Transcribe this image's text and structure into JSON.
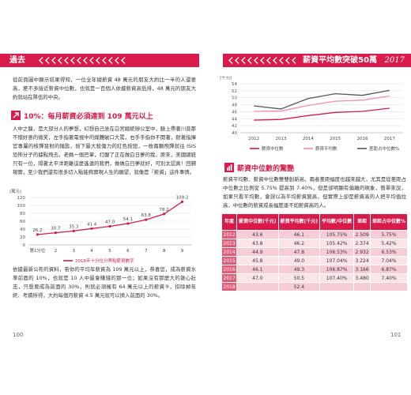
{
  "left_page": {
    "header": "過去",
    "paragraph_1": "從前頁圖中顯示結果得知，一位全年總薪資 48 萬元的朋友大約比一半的人還要高，差不多接近薪資中位數，也就是一百個人依據薪資高低排，48 萬元的朋友大約就站在隊伍的中央。",
    "heading": "10%：每月薪資必須達到 109 萬元以上",
    "paragraph_2": "人中之龍，是大部分人的夢想，幻想自己坐在白宮總統辦公室中，臉上帶著川普那不懷好意的微笑，左手指著電視中的媒體破口大罵，右手手指你不開著，耐著指揮官專屬的核彈發射的鑰匙，按下最大殺傷力的紅色按鈕，一枚兩顆飛彈就往 ISIS 恐怖分子的據點飛去。老媽一個巴掌，打醒了正在做白日夢的我，原來，美國總統只有一位，隔著太平洋距離這麼遙遠的我們，做做白日夢就好，可別太認真！回歸現實，至少我們還有很多切入點能夠實現人生的願望，就像是「薪資」這件事情。",
    "paragraph_3": "依據最新公布的資料，若你的平均年薪資為 109 萬元以上，恭喜您，成為薪資水準前面的 10%，也就是 10 人中最會賺錢的那一位；如果沒有那麼大的雄心壯志，只想要成為前面的 30%，則就必須擁有 64 萬元以上的薪資③，扣除掉年終、考績所得，大約每個月薪資 4.5 萬元就可以擠入前面的 30%。",
    "page_number": "100"
  },
  "right_page": {
    "header": "薪資平均數突破50萬",
    "header_year": "2017",
    "heading": "薪資中位數的驚艷",
    "paragraph": "薪資平均數、薪資中位數雙雙創新高，兩者差距幅度也越來越大，尤其是從差距占中位數之比例從 5.75% 提高到 7.40%，但是卻明顯有偏離的現象，簡單來說，如果只看平均數，會誤以為平均薪資變高，但實際上卻是薪資高的人把平均值拉高，中位數的薪資成長幅度遠不如薪資高的人。",
    "table": {
      "header": [
        "年度",
        "薪資中位數(千元)",
        "薪資平均數(千元)",
        "平均數/中位數",
        "差距",
        "差距占中位數%"
      ],
      "rows": [
        [
          "2012",
          "43.6",
          "46.1",
          "105.75%",
          "2.509",
          "5.75%"
        ],
        [
          "2013",
          "43.8",
          "46.2",
          "105.42%",
          "2.374",
          "5.42%"
        ],
        [
          "2014",
          "44.9",
          "47.8",
          "106.53%",
          "2.932",
          "6.53%"
        ],
        [
          "2015",
          "45.8",
          "49.0",
          "107.04%",
          "3.224",
          "7.04%"
        ],
        [
          "2016",
          "46.1",
          "49.3",
          "106.87%",
          "3.166",
          "6.87%"
        ],
        [
          "2017",
          "47.0",
          "50.5",
          "107.40%",
          "3.480",
          "7.40%"
        ],
        [
          "2018",
          null,
          "52.4",
          null,
          null,
          null
        ]
      ]
    },
    "page_number": "101"
  },
  "chart_data": [
    {
      "type": "line",
      "y_label": "(萬元)",
      "categories": [
        "第1分位",
        "2",
        "3",
        "4",
        "5",
        "6",
        "7",
        "8",
        "9"
      ],
      "series": [
        {
          "name": "2016年十分位分界點薪資數字",
          "color": "#d81b4a",
          "values": [
            26.2,
            30.7,
            35.3,
            41.4,
            47.0,
            54.1,
            63.8,
            78.2,
            109.2
          ],
          "value_labels": [
            "26.2",
            "30.7",
            "35.3",
            "41.4",
            "47.0",
            "54.1",
            "63.8",
            "78.2",
            "109.2"
          ]
        }
      ],
      "ylim": [
        0,
        120
      ],
      "yticks": [
        0,
        20,
        40,
        60,
        80,
        100,
        120
      ],
      "grid": true
    },
    {
      "type": "line",
      "y_label": "(千元)",
      "categories": [
        "2012",
        "2013",
        "2014",
        "2015",
        "2016",
        "2017"
      ],
      "series": [
        {
          "name": "薪資中位數",
          "color": "#d81b4a",
          "values": [
            43.6,
            43.8,
            44.9,
            45.8,
            46.1,
            47.0
          ]
        },
        {
          "name": "薪資平均數",
          "color": "#f08fa8",
          "values": [
            46.1,
            46.2,
            47.8,
            49.0,
            49.3,
            50.5
          ]
        },
        {
          "name": "差距占中位數%",
          "color": "#555555",
          "axis": "y2",
          "values": [
            5.75,
            5.42,
            6.53,
            7.04,
            6.87,
            7.4
          ]
        }
      ],
      "ylim": [
        40,
        54
      ],
      "yticks": [
        40,
        42,
        44,
        46,
        48,
        50,
        52,
        54
      ],
      "y2lim": [
        2.9,
        8.1
      ],
      "grid": true
    }
  ]
}
